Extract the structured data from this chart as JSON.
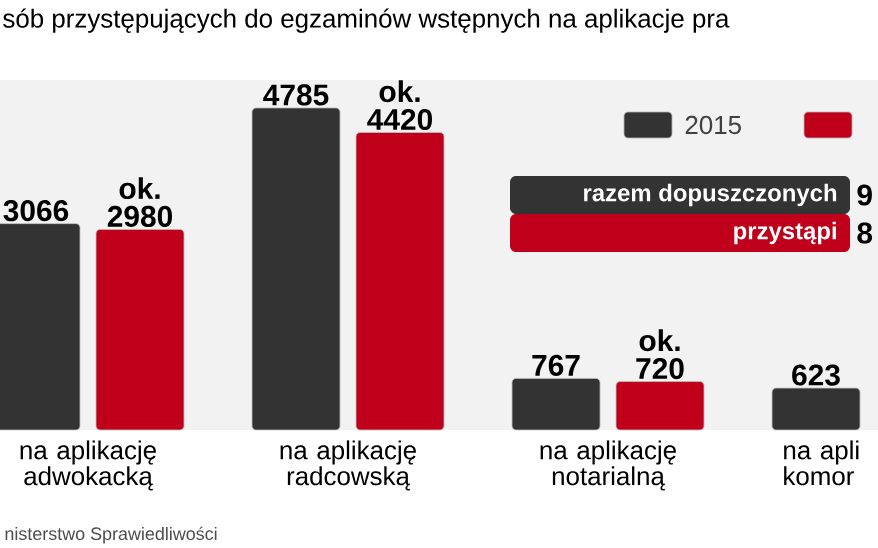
{
  "chart_data": {
    "type": "bar",
    "title": "sób przystępujących do egzaminów wstępnych na aplikacje pra",
    "categories": [
      "na aplikację adwokacką",
      "na aplikację radcowską",
      "na aplikację notarialną",
      "na apli komor"
    ],
    "series": [
      {
        "name": "2015",
        "color": "#333333",
        "values": [
          3066,
          4785,
          767,
          623
        ],
        "value_labels": [
          "3066",
          "4785",
          "767",
          "623"
        ]
      },
      {
        "color": "#c0001a",
        "values": [
          2980,
          4420,
          720,
          null
        ],
        "value_labels": [
          "ok. 2980",
          "ok. 4420",
          "ok. 720",
          null
        ]
      }
    ],
    "ylim": [
      0,
      5200
    ],
    "legend": "top right",
    "annotations": [
      "nisterstwo Sprawiedliwości",
      "razem dopuszczonych",
      "9",
      "przystąpi",
      "8"
    ]
  }
}
